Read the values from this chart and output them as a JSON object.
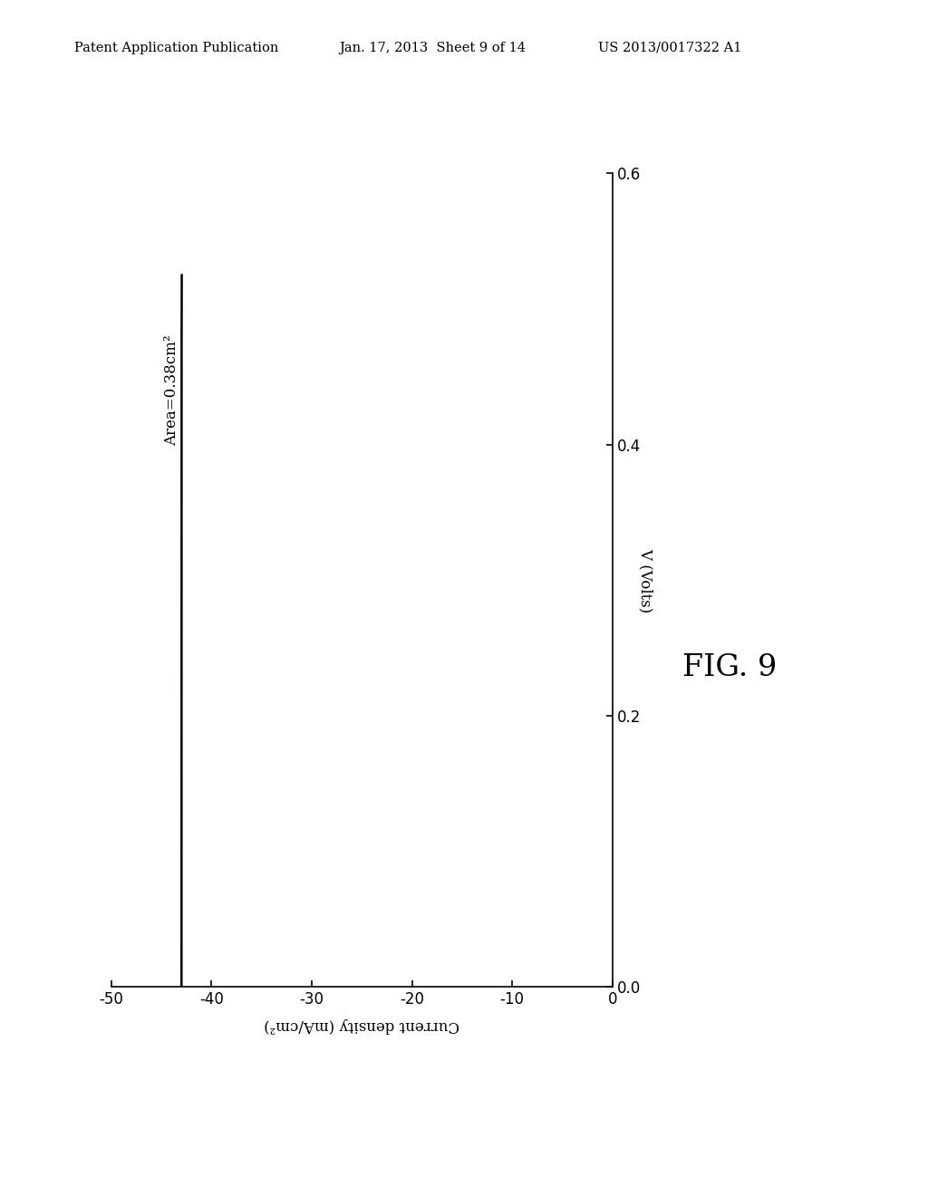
{
  "title": "FIG. 9",
  "header_left": "Patent Application Publication",
  "header_center": "Jan. 17, 2013  Sheet 9 of 14",
  "header_right": "US 2013/0017322 A1",
  "xlabel": "Current density (mA/cm²)",
  "ylabel": "V (Volts)",
  "annotation": "Area=0.38cm²",
  "xlim": [
    -50,
    0
  ],
  "ylim": [
    0.0,
    0.6
  ],
  "xticks": [
    -50,
    -40,
    -30,
    -20,
    -10,
    0
  ],
  "yticks": [
    0.0,
    0.2,
    0.4,
    0.6
  ],
  "background_color": "#ffffff",
  "line_color": "#000000",
  "line_width": 1.8,
  "Jsc": -43.0,
  "Voc": 0.52,
  "n_ideality": 2.0,
  "J0": 1e-06
}
